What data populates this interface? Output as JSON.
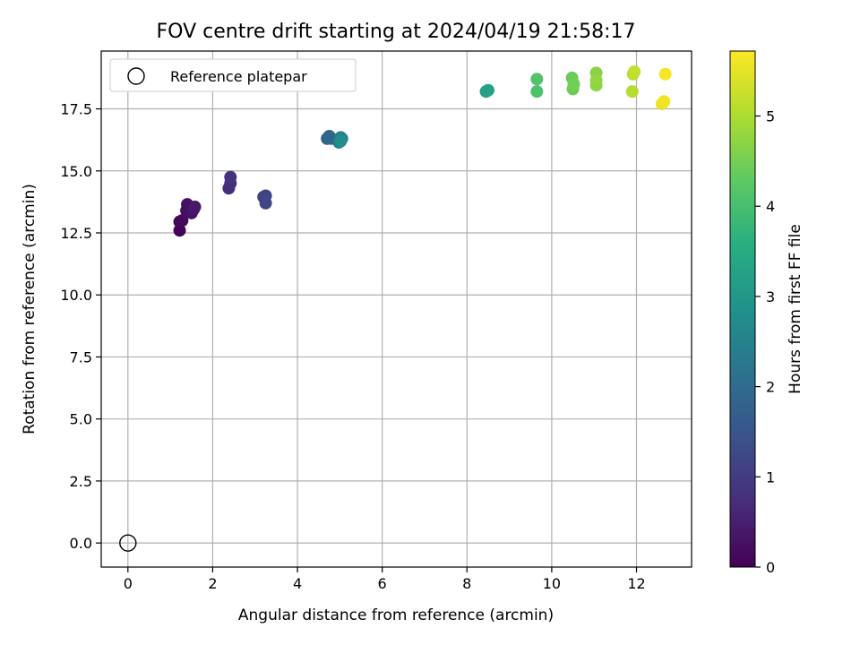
{
  "chart_data": {
    "type": "scatter",
    "title": "FOV centre drift starting at 2024/04/19 21:58:17",
    "xlabel": "Angular distance from reference (arcmin)",
    "ylabel": "Rotation from reference (arcmin)",
    "xlim": [
      -0.63,
      13.3
    ],
    "ylim": [
      -0.97,
      19.83
    ],
    "xticks": [
      0,
      2,
      4,
      6,
      8,
      10,
      12
    ],
    "xtick_labels": [
      "0",
      "2",
      "4",
      "6",
      "8",
      "10",
      "12"
    ],
    "yticks": [
      0.0,
      2.5,
      5.0,
      7.5,
      10.0,
      12.5,
      15.0,
      17.5
    ],
    "ytick_labels": [
      "0.0",
      "2.5",
      "5.0",
      "7.5",
      "10.0",
      "12.5",
      "15.0",
      "17.5"
    ],
    "grid": true,
    "legend": {
      "placement": "upper-left",
      "entries": [
        "Reference platepar"
      ]
    },
    "reference_point": {
      "x": 0,
      "y": 0
    },
    "colorbar": {
      "label": "Hours from first FF file",
      "min": 0,
      "max": 5.72,
      "ticks": [
        0,
        1,
        2,
        3,
        4,
        5
      ],
      "tick_labels": [
        "0",
        "1",
        "2",
        "3",
        "4",
        "5"
      ],
      "colormap": "viridis"
    },
    "points": [
      {
        "x": 1.22,
        "y": 12.6,
        "c": 0.05
      },
      {
        "x": 1.22,
        "y": 12.95,
        "c": 0.1
      },
      {
        "x": 1.28,
        "y": 13.0,
        "c": 0.15
      },
      {
        "x": 1.38,
        "y": 13.4,
        "c": 0.2
      },
      {
        "x": 1.4,
        "y": 13.65,
        "c": 0.25
      },
      {
        "x": 1.5,
        "y": 13.3,
        "c": 0.3
      },
      {
        "x": 1.55,
        "y": 13.45,
        "c": 0.35
      },
      {
        "x": 1.58,
        "y": 13.55,
        "c": 0.4
      },
      {
        "x": 2.38,
        "y": 14.3,
        "c": 0.75
      },
      {
        "x": 2.42,
        "y": 14.5,
        "c": 0.8
      },
      {
        "x": 2.42,
        "y": 14.75,
        "c": 0.85
      },
      {
        "x": 3.2,
        "y": 13.95,
        "c": 1.1
      },
      {
        "x": 3.25,
        "y": 14.0,
        "c": 1.15
      },
      {
        "x": 3.25,
        "y": 13.7,
        "c": 1.2
      },
      {
        "x": 4.7,
        "y": 16.3,
        "c": 1.8
      },
      {
        "x": 4.75,
        "y": 16.4,
        "c": 1.85
      },
      {
        "x": 4.8,
        "y": 16.3,
        "c": 1.95
      },
      {
        "x": 4.98,
        "y": 16.15,
        "c": 2.25
      },
      {
        "x": 5.02,
        "y": 16.35,
        "c": 2.4
      },
      {
        "x": 5.05,
        "y": 16.3,
        "c": 2.5
      },
      {
        "x": 5.02,
        "y": 16.2,
        "c": 2.8
      },
      {
        "x": 8.45,
        "y": 18.2,
        "c": 3.2
      },
      {
        "x": 8.5,
        "y": 18.25,
        "c": 3.3
      },
      {
        "x": 9.65,
        "y": 18.2,
        "c": 4.1
      },
      {
        "x": 9.65,
        "y": 18.7,
        "c": 4.15
      },
      {
        "x": 10.48,
        "y": 18.75,
        "c": 4.4
      },
      {
        "x": 10.5,
        "y": 18.3,
        "c": 4.45
      },
      {
        "x": 10.52,
        "y": 18.5,
        "c": 4.5
      },
      {
        "x": 11.05,
        "y": 18.95,
        "c": 4.7
      },
      {
        "x": 11.05,
        "y": 18.45,
        "c": 4.75
      },
      {
        "x": 11.05,
        "y": 18.65,
        "c": 4.8
      },
      {
        "x": 11.9,
        "y": 18.2,
        "c": 5.1
      },
      {
        "x": 11.92,
        "y": 18.9,
        "c": 5.15
      },
      {
        "x": 11.95,
        "y": 19.0,
        "c": 5.2
      },
      {
        "x": 12.6,
        "y": 17.7,
        "c": 5.55
      },
      {
        "x": 12.65,
        "y": 17.8,
        "c": 5.6
      },
      {
        "x": 12.68,
        "y": 18.9,
        "c": 5.65
      }
    ]
  }
}
